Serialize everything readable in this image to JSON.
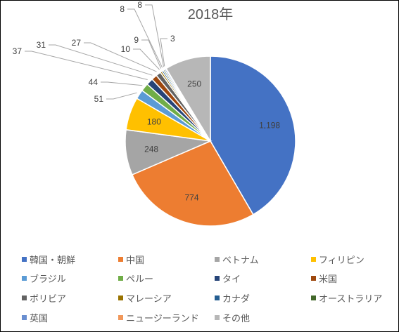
{
  "chart_data": {
    "type": "pie",
    "title": "2018年",
    "legend_position": "bottom",
    "slices": [
      {
        "name": "韓国・朝鮮",
        "value": 1198,
        "label": "1,198",
        "color": "#4472C4"
      },
      {
        "name": "中国",
        "value": 774,
        "label": "774",
        "color": "#ED7D31"
      },
      {
        "name": "ベトナム",
        "value": 248,
        "label": "248",
        "color": "#A5A5A5"
      },
      {
        "name": "フィリピン",
        "value": 180,
        "label": "180",
        "color": "#FFC000"
      },
      {
        "name": "ブラジル",
        "value": 51,
        "label": "51",
        "color": "#5B9BD5"
      },
      {
        "name": "ペルー",
        "value": 44,
        "label": "44",
        "color": "#70AD47"
      },
      {
        "name": "タイ",
        "value": 37,
        "label": "37",
        "color": "#264478"
      },
      {
        "name": "米国",
        "value": 31,
        "label": "31",
        "color": "#9E480E"
      },
      {
        "name": "ボリビア",
        "value": 27,
        "label": "27",
        "color": "#636363"
      },
      {
        "name": "マレーシア",
        "value": 10,
        "label": "10",
        "color": "#997300"
      },
      {
        "name": "カナダ",
        "value": 9,
        "label": "9",
        "color": "#255E91"
      },
      {
        "name": "オーストラリア",
        "value": 8,
        "label": "8",
        "color": "#43682B"
      },
      {
        "name": "英国",
        "value": 8,
        "label": "8",
        "color": "#698ED0"
      },
      {
        "name": "ニュージーランド",
        "value": 3,
        "label": "3",
        "color": "#F1975A"
      },
      {
        "name": "その他",
        "value": 250,
        "label": "250",
        "color": "#B7B7B7"
      }
    ]
  }
}
